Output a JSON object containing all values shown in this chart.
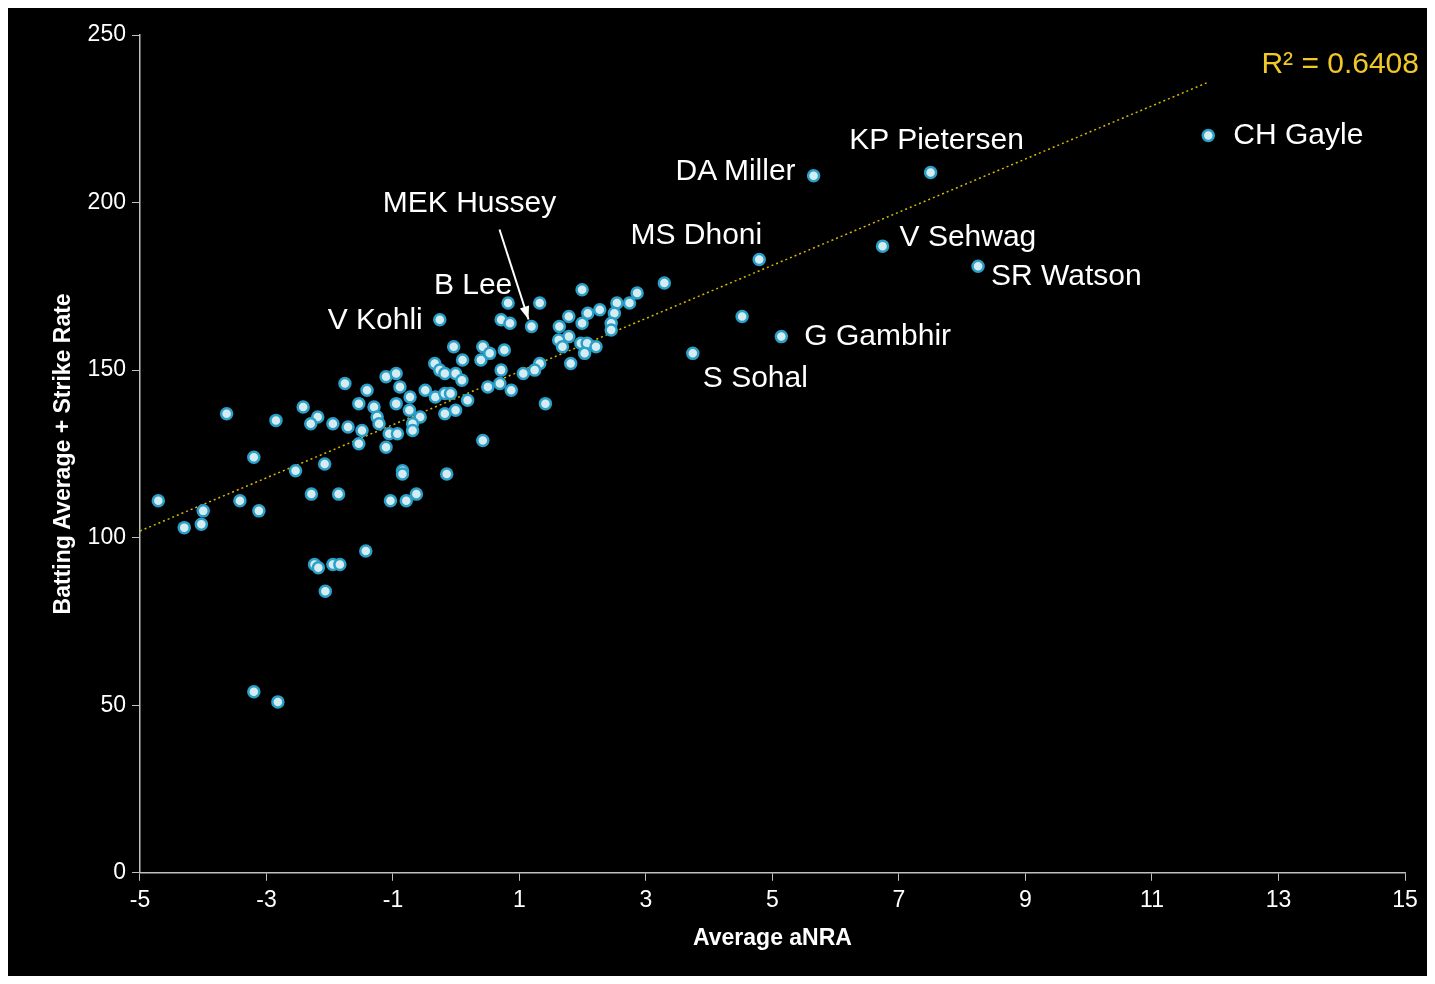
{
  "chart_data": {
    "type": "scatter",
    "xlabel": "Average aNRA",
    "ylabel": "Batting Average + Strike Rate",
    "xlim": [
      -5,
      15
    ],
    "xticks": [
      -5,
      -3,
      -1,
      1,
      3,
      5,
      7,
      9,
      11,
      13,
      15
    ],
    "ylim": [
      0,
      250
    ],
    "yticks": [
      0,
      50,
      100,
      150,
      200,
      250
    ],
    "grid": false,
    "legend": false,
    "marker": "circle",
    "series": [
      {
        "color": "#2aa0c8",
        "x": [
          11.89,
          7.5,
          5.65,
          4.79,
          6.74,
          8.25,
          5.14,
          3.74,
          4.52,
          3.29,
          1.19,
          -0.26,
          -0.04,
          0.1,
          -0.34,
          -0.26,
          -0.18,
          -0.01,
          0.09,
          -1.76,
          -1.11,
          -0.95,
          -0.89,
          -1.41,
          -0.49,
          -0.33,
          -0.18,
          -0.09,
          0.18,
          -2.42,
          -1.54,
          -1.3,
          -0.95,
          -0.73,
          -0.74,
          -0.57,
          -0.18,
          -0.01,
          -3.63,
          -2.85,
          -2.19,
          -2.3,
          -1.95,
          -1.71,
          -1.49,
          -1.25,
          -1.22,
          -1.06,
          -0.93,
          -0.69,
          -0.69,
          -1.54,
          -1.11,
          -3.2,
          -2.54,
          -2.08,
          -0.85,
          -0.85,
          -0.15,
          -4.71,
          -3.42,
          -2.29,
          -1.86,
          -1.04,
          -0.79,
          -0.63,
          -4.0,
          -3.12,
          -4.3,
          -4.03,
          -1.43,
          -2.24,
          -2.18,
          -1.95,
          -1.84,
          -2.07,
          -3.2,
          -2.82,
          1.99,
          2.86,
          2.74,
          2.54,
          1.32,
          0.82,
          2.27,
          2.5,
          2.08,
          1.78,
          0.71,
          0.85,
          1.99,
          2.45,
          2.45,
          1.63,
          1.78,
          1.62,
          1.68,
          1.97,
          2.07,
          2.21,
          2.03,
          1.81,
          1.32,
          1.24,
          1.06,
          0.76,
          0.42,
          0.39,
          0.53,
          0.71,
          0.5,
          0.69,
          0.87,
          1.41,
          0.42
        ],
        "values": [
          220,
          209,
          208,
          183,
          187,
          181,
          160,
          155,
          166,
          176,
          163,
          165,
          157,
          153,
          152,
          150,
          149,
          149,
          147,
          146,
          148,
          149,
          145,
          144,
          144,
          142,
          143,
          143,
          141,
          139,
          140,
          139,
          140,
          142,
          138,
          136,
          137,
          138,
          137,
          135,
          136,
          134,
          134,
          133,
          132,
          136,
          134,
          131,
          131,
          134,
          132,
          128,
          127,
          124,
          120,
          122,
          120,
          119,
          119,
          111,
          111,
          113,
          113,
          111,
          111,
          113,
          108,
          108,
          103,
          104,
          96,
          92,
          91,
          92,
          92,
          84,
          54,
          51,
          174,
          173,
          170,
          170,
          170,
          170,
          168,
          167,
          167,
          166,
          165,
          164,
          164,
          164,
          162,
          163,
          160,
          159,
          157,
          158,
          158,
          157,
          155,
          152,
          152,
          150,
          149,
          156,
          157,
          153,
          155,
          150,
          145,
          146,
          144,
          140,
          129
        ]
      },
      {
        "type": "line",
        "color": "#d4b800",
        "line_style": "dotted",
        "marker": "none",
        "x": [
          -5,
          11.9
        ],
        "values": [
          102,
          236
        ]
      }
    ],
    "annotations": [
      "R² = 0.6408",
      {
        "text": "CH Gayle",
        "x": 11.89,
        "y": 220
      },
      {
        "text": "KP Pietersen",
        "x": 7.5,
        "y": 209
      },
      {
        "text": "DA Miller",
        "x": 5.65,
        "y": 208
      },
      {
        "text": "MS Dhoni",
        "x": 4.79,
        "y": 183
      },
      {
        "text": "V Sehwag",
        "x": 6.74,
        "y": 187
      },
      {
        "text": "SR Watson",
        "x": 8.25,
        "y": 181
      },
      {
        "text": "G Gambhir",
        "x": 5.14,
        "y": 160
      },
      {
        "text": "S Sohal",
        "x": 3.74,
        "y": 155
      },
      {
        "text": "MEK Hussey",
        "x": 1.19,
        "y": 163
      },
      {
        "text": "B Lee",
        "x": 0.82,
        "y": 170
      },
      {
        "text": "V Kohli",
        "x": -0.26,
        "y": 165
      }
    ]
  }
}
